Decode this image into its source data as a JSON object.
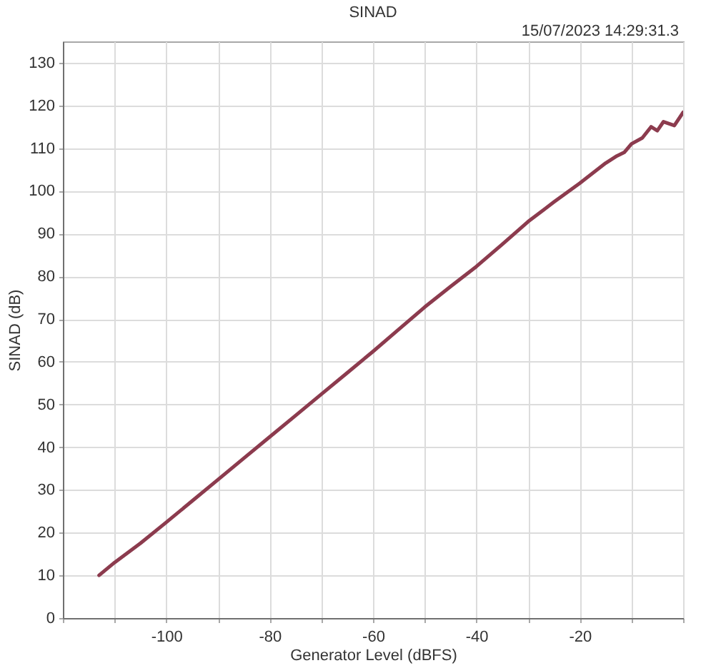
{
  "chart_data": {
    "type": "line",
    "title": "SINAD",
    "xlabel": "Generator Level (dBFS)",
    "ylabel": "SINAD (dB)",
    "annotations": [
      "15/07/2023 14:29:31.3"
    ],
    "x": [
      -113,
      -110,
      -105,
      -100,
      -95,
      -90,
      -85,
      -80,
      -75,
      -70,
      -65,
      -60,
      -55,
      -50,
      -45,
      -40,
      -35,
      -30,
      -25,
      -20,
      -15,
      -12.8,
      -11.4,
      -10,
      -7.9,
      -6.2,
      -5,
      -3.8,
      -1.7,
      0
    ],
    "series": [
      {
        "color": "#8c3b4e",
        "values": [
          10,
          13,
          17.5,
          22.4,
          27.4,
          32.4,
          37.4,
          42.4,
          47.4,
          52.4,
          57.4,
          62.4,
          67.6,
          72.8,
          77.6,
          82.3,
          87.5,
          92.8,
          97.4,
          101.8,
          106.5,
          108.2,
          109,
          111,
          112.4,
          115,
          114.1,
          116.2,
          115.3,
          118.4
        ]
      }
    ],
    "xlim": [
      -120,
      0
    ],
    "ylim": [
      0,
      135
    ],
    "xticks": [
      {
        "value": -120,
        "label": null
      },
      {
        "value": -110,
        "label": null
      },
      -100,
      {
        "value": -90,
        "label": null
      },
      -80,
      {
        "value": -70,
        "label": null
      },
      -60,
      {
        "value": -50,
        "label": null
      },
      -40,
      {
        "value": -30,
        "label": null
      },
      -20,
      {
        "value": -10,
        "label": null
      },
      {
        "value": 0,
        "label": null
      }
    ],
    "yticks": [
      0,
      10,
      20,
      30,
      40,
      50,
      60,
      70,
      80,
      90,
      100,
      110,
      120,
      130
    ],
    "grid": true,
    "line_style": "solid",
    "marker": "none"
  }
}
